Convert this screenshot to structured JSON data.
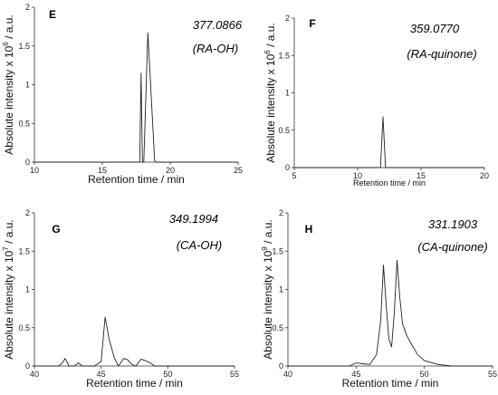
{
  "chart_data": [
    {
      "type": "line",
      "panel_label": "E",
      "mz_label": "377.0866",
      "compound_label": "(RA-OH)",
      "xlabel": "Retention time / min",
      "ylabel": "Absolute intensity x 10",
      "ylabel_exp": "6",
      "ylabel_unit": " / a.u.",
      "xlim": [
        10,
        25
      ],
      "ylim": [
        0,
        2
      ],
      "xticks": [
        "10",
        "15",
        "20",
        "25"
      ],
      "yticks": [
        "0",
        "0.5",
        "1",
        "1.5",
        "2"
      ],
      "series": [
        {
          "x": [
            10,
            17.75,
            17.85,
            17.95,
            18.05,
            18.35,
            18.85,
            18.95,
            25
          ],
          "y": [
            0,
            0,
            1.15,
            0,
            0,
            1.67,
            0.02,
            0,
            0
          ]
        }
      ]
    },
    {
      "type": "line",
      "panel_label": "F",
      "mz_label": "359.0770",
      "compound_label": "(RA-quinone)",
      "xlabel": "Retention time / min",
      "ylabel": "Absolute intensity x 10",
      "ylabel_exp": "6",
      "ylabel_unit": " / a.u.",
      "xlim": [
        5,
        20
      ],
      "ylim": [
        0,
        2
      ],
      "xticks": [
        "5",
        "10",
        "15",
        "20"
      ],
      "yticks": [
        "0",
        "0.5",
        "1",
        "1.5",
        "2"
      ],
      "series": [
        {
          "x": [
            5,
            11.8,
            12.0,
            12.2,
            20
          ],
          "y": [
            0,
            0,
            0.68,
            0,
            0
          ]
        }
      ]
    },
    {
      "type": "line",
      "panel_label": "G",
      "mz_label": "349.1994",
      "compound_label": "(CA-OH)",
      "xlabel": "Retention time / min",
      "ylabel": "Absolute intensity x 10",
      "ylabel_exp": "7",
      "ylabel_unit": " / a.u.",
      "xlim": [
        40,
        55
      ],
      "ylim": [
        0,
        2
      ],
      "xticks": [
        "40",
        "45",
        "50",
        "55"
      ],
      "yticks": [
        "0",
        "0.5",
        "1",
        "1.5",
        "2"
      ],
      "series": [
        {
          "x": [
            40,
            41.8,
            42.1,
            42.3,
            42.6,
            43.0,
            43.3,
            43.6,
            44.5,
            45.0,
            45.3,
            45.6,
            46.0,
            46.3,
            46.7,
            47.0,
            47.3,
            47.6,
            48.0,
            48.3,
            48.6,
            49.0,
            55
          ],
          "y": [
            0,
            0,
            0.04,
            0.1,
            0,
            0,
            0.04,
            0,
            0,
            0.06,
            0.64,
            0.35,
            0.1,
            0,
            0.1,
            0.08,
            0.02,
            0,
            0.09,
            0.07,
            0.05,
            0,
            0
          ]
        }
      ]
    },
    {
      "type": "line",
      "panel_label": "H",
      "mz_label": "331.1903",
      "compound_label": "(CA-quinone)",
      "xlabel": "Retention time / min",
      "ylabel": "Absolute intensity x 10",
      "ylabel_exp": "9",
      "ylabel_unit": " / a.u.",
      "xlim": [
        40,
        55
      ],
      "ylim": [
        0,
        2
      ],
      "xticks": [
        "40",
        "45",
        "50",
        "55"
      ],
      "yticks": [
        "0",
        "0.5",
        "1",
        "1.5",
        "2"
      ],
      "series": [
        {
          "x": [
            40,
            44.5,
            45.0,
            45.5,
            46.0,
            46.5,
            46.8,
            47.0,
            47.2,
            47.4,
            47.6,
            47.8,
            48.0,
            48.2,
            48.4,
            48.7,
            49.0,
            49.5,
            50.0,
            51.0,
            52.0,
            55
          ],
          "y": [
            0,
            0,
            0.04,
            0.03,
            0.02,
            0.15,
            0.6,
            1.32,
            0.8,
            0.35,
            0.25,
            0.7,
            1.38,
            0.9,
            0.55,
            0.4,
            0.3,
            0.15,
            0.07,
            0.02,
            0,
            0
          ]
        }
      ]
    }
  ]
}
